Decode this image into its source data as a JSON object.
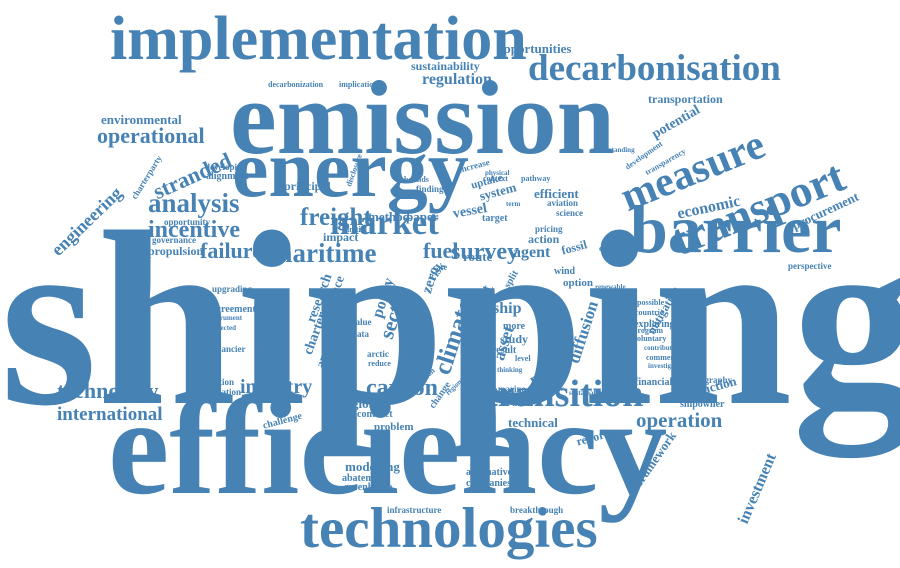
{
  "colors": {
    "text": "#4682B4",
    "background": "#FFFFFF"
  },
  "words": [
    "shipping",
    "efficiency",
    "emission",
    "energy",
    "implementation",
    "barrier",
    "technologies",
    "transport",
    "decarbonisation",
    "measure",
    "transition",
    "market",
    "maritime",
    "freight",
    "analysis",
    "technology",
    "failure",
    "incentive",
    "stranded",
    "operational",
    "engineering",
    "international",
    "carbon",
    "industry",
    "survey",
    "fuel",
    "operation",
    "climate",
    "investment",
    "economic",
    "modelling",
    "regulation",
    "opportunities",
    "sustainability",
    "environmental",
    "potential",
    "procurement",
    "transportation",
    "framework",
    "innovation",
    "information",
    "alternative",
    "companies",
    "abatement",
    "greenhouse",
    "infrastructure",
    "breakthrough",
    "technical",
    "report",
    "reduction",
    "shipowner",
    "financial",
    "oceanography",
    "global",
    "contract",
    "problem",
    "challenge",
    "model",
    "agent",
    "propulsion",
    "governance",
    "opportunity",
    "charterparty",
    "principal",
    "alignment",
    "developing",
    "decarbonization",
    "implication",
    "perspective",
    "sector",
    "policy",
    "zero",
    "cost",
    "diffusion",
    "asset",
    "ship",
    "route",
    "paper",
    "method",
    "vessel",
    "impact",
    "action",
    "fossil",
    "wind",
    "option",
    "pricing",
    "demand",
    "target",
    "system",
    "uptake",
    "efficient",
    "aviation",
    "science",
    "mitigation",
    "possible",
    "countrie",
    "exploring",
    "program",
    "voluntary",
    "research",
    "finance",
    "charter",
    "approach",
    "value",
    "data",
    "study",
    "result",
    "level",
    "arctic",
    "reduce",
    "based",
    "marine",
    "overview",
    "sustainable",
    "trade",
    "upgrading",
    "agreement",
    "financier",
    "instrument",
    "expected",
    "disclosure",
    "bounds",
    "finding",
    "pathway",
    "context",
    "development",
    "understanding",
    "transparency",
    "commercial",
    "contribute",
    "investigate",
    "change",
    "term",
    "more",
    "split",
    "risk",
    "case",
    "initial",
    "service",
    "thinking",
    "solution",
    "increase",
    "physical",
    "regional",
    "renewable"
  ]
}
